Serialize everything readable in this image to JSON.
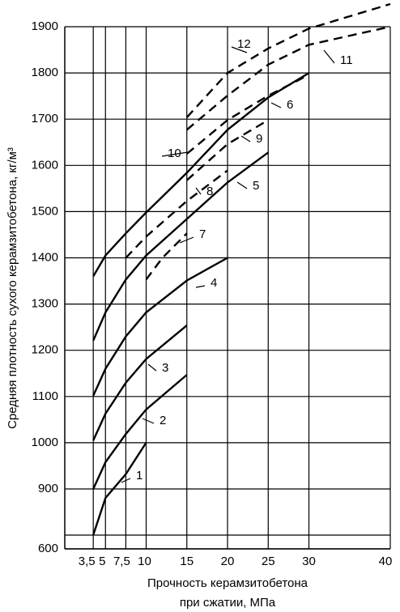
{
  "chart_data": {
    "type": "line",
    "xlabel": [
      "Прочность керамзитобетона",
      "при сжатии, МПа"
    ],
    "ylabel": "Средняя плотность сухого керамзитобетона, кг/м³",
    "xlim": [
      0,
      40
    ],
    "ylim": [
      600,
      1900
    ],
    "xticks": [
      {
        "value": 3.5,
        "label": "3,5"
      },
      5,
      {
        "value": 7.5,
        "label": "7,5"
      },
      10,
      15,
      20,
      25,
      30,
      40
    ],
    "yticks": [
      600,
      900,
      1000,
      1100,
      1200,
      1300,
      1400,
      1500,
      1600,
      1700,
      1800,
      1900
    ],
    "grid": true,
    "series": [
      {
        "name": "1",
        "color": "#000000",
        "dashed": false,
        "x": [
          3.5,
          5,
          7.5,
          10
        ],
        "values": [
          670,
          855,
          932,
          1000
        ]
      },
      {
        "name": "2",
        "color": "#000000",
        "dashed": false,
        "x": [
          3.5,
          5,
          7.5,
          10,
          15
        ],
        "values": [
          900,
          958,
          1019,
          1072,
          1147
        ]
      },
      {
        "name": "3",
        "color": "#000000",
        "dashed": false,
        "x": [
          3.5,
          5,
          7.5,
          10,
          15
        ],
        "values": [
          1005,
          1063,
          1130,
          1181,
          1254
        ]
      },
      {
        "name": "4",
        "color": "#000000",
        "dashed": false,
        "x": [
          3.5,
          5,
          7.5,
          10,
          15,
          20
        ],
        "values": [
          1102,
          1160,
          1230,
          1282,
          1351,
          1400
        ]
      },
      {
        "name": "5",
        "color": "#000000",
        "dashed": false,
        "x": [
          3.5,
          5,
          7.5,
          10,
          15,
          20,
          25
        ],
        "values": [
          1221,
          1282,
          1353,
          1405,
          1484,
          1563,
          1628
        ]
      },
      {
        "name": "6",
        "color": "#000000",
        "dashed": false,
        "x": [
          3.5,
          5,
          7.5,
          10,
          15,
          20,
          25,
          30
        ],
        "values": [
          1360,
          1405,
          1453,
          1498,
          1584,
          1677,
          1747,
          1800
        ]
      },
      {
        "name": "7",
        "color": "#000000",
        "dashed": true,
        "x": [
          10,
          12,
          15
        ],
        "values": [
          1353,
          1400,
          1453
        ]
      },
      {
        "name": "8",
        "color": "#000000",
        "dashed": true,
        "x": [
          7.5,
          10,
          15,
          20
        ],
        "values": [
          1400,
          1446,
          1523,
          1589
        ]
      },
      {
        "name": "9",
        "color": "#000000",
        "dashed": true,
        "x": [
          15,
          20,
          25
        ],
        "values": [
          1568,
          1646,
          1698
        ]
      },
      {
        "name": "10",
        "color": "#000000",
        "dashed": true,
        "x": [
          15,
          20,
          25,
          30
        ],
        "values": [
          1625,
          1698,
          1751,
          1796
        ]
      },
      {
        "name": "11",
        "color": "#000000",
        "dashed": true,
        "x": [
          15,
          20,
          25,
          30,
          40
        ],
        "values": [
          1677,
          1751,
          1818,
          1861,
          1900
        ]
      },
      {
        "name": "12",
        "color": "#000000",
        "dashed": true,
        "x": [
          15,
          20,
          25,
          30,
          40
        ],
        "values": [
          1704,
          1800,
          1853,
          1896,
          1949
        ]
      }
    ]
  }
}
